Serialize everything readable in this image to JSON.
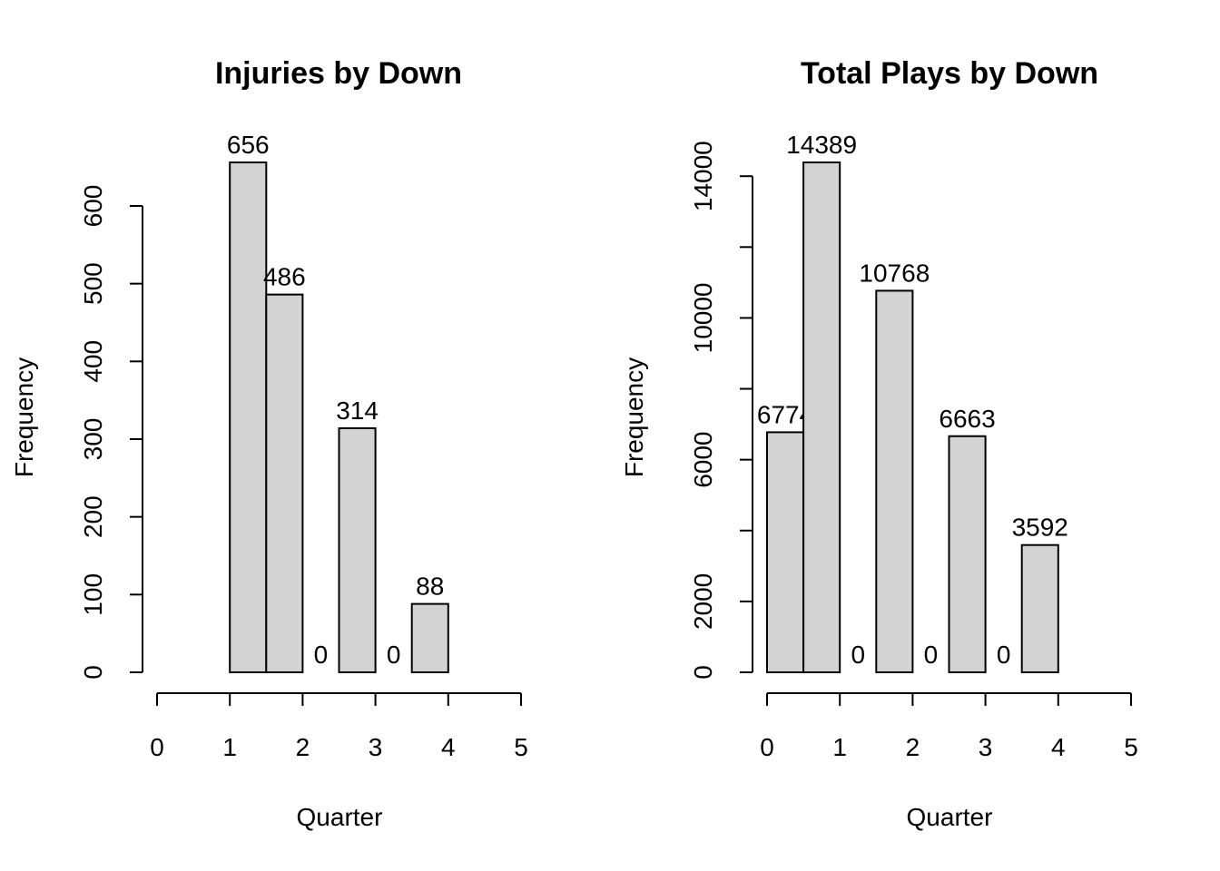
{
  "chart_data": [
    {
      "type": "bar",
      "title": "Injuries by Down",
      "xlabel": "Quarter",
      "ylabel": "Frequency",
      "x_ticks": [
        "0",
        "1",
        "2",
        "3",
        "4",
        "5"
      ],
      "y_ticks": [
        "0",
        "100",
        "200",
        "300",
        "400",
        "500",
        "600"
      ],
      "xlim": [
        0,
        5
      ],
      "ylim": [
        0,
        656
      ],
      "bins": [
        {
          "start": 1.0,
          "end": 1.5,
          "value": 656,
          "label": "656"
        },
        {
          "start": 1.5,
          "end": 2.0,
          "value": 486,
          "label": "486"
        },
        {
          "start": 2.0,
          "end": 2.5,
          "value": 0,
          "label": "0"
        },
        {
          "start": 2.5,
          "end": 3.0,
          "value": 314,
          "label": "314"
        },
        {
          "start": 3.0,
          "end": 3.5,
          "value": 0,
          "label": "0"
        },
        {
          "start": 3.5,
          "end": 4.0,
          "value": 88,
          "label": "88"
        }
      ],
      "bar_color": "#d3d3d3",
      "grid": false,
      "legend": "none"
    },
    {
      "type": "bar",
      "title": "Total Plays by Down",
      "xlabel": "Quarter",
      "ylabel": "Frequency",
      "x_ticks": [
        "0",
        "1",
        "2",
        "3",
        "4",
        "5"
      ],
      "y_ticks": [
        "0",
        "2000",
        "6000",
        "10000",
        "14000"
      ],
      "xlim": [
        0,
        5
      ],
      "ylim": [
        0,
        14389
      ],
      "bins": [
        {
          "start": 0.0,
          "end": 0.5,
          "value": 6774,
          "label": "6774"
        },
        {
          "start": 0.5,
          "end": 1.0,
          "value": 14389,
          "label": "14389"
        },
        {
          "start": 1.0,
          "end": 1.5,
          "value": 0,
          "label": "0"
        },
        {
          "start": 1.5,
          "end": 2.0,
          "value": 10768,
          "label": "10768"
        },
        {
          "start": 2.0,
          "end": 2.5,
          "value": 0,
          "label": "0"
        },
        {
          "start": 2.5,
          "end": 3.0,
          "value": 6663,
          "label": "6663"
        },
        {
          "start": 3.0,
          "end": 3.5,
          "value": 0,
          "label": "0"
        },
        {
          "start": 3.5,
          "end": 4.0,
          "value": 3592,
          "label": "3592"
        }
      ],
      "bar_color": "#d3d3d3",
      "grid": false,
      "legend": "none"
    }
  ]
}
